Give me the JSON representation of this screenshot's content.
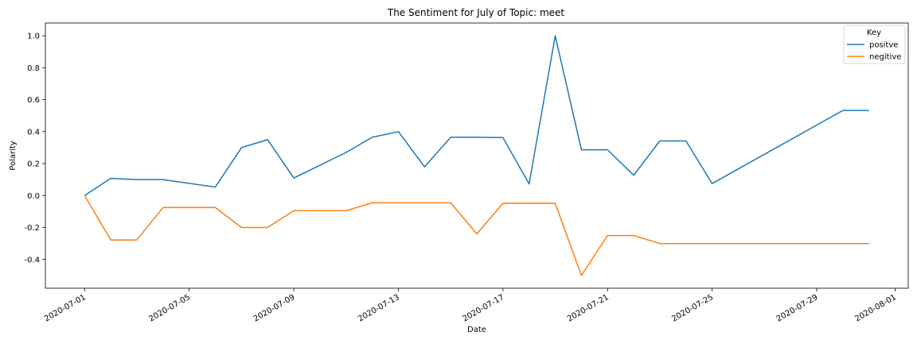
{
  "chart_data": {
    "type": "line",
    "title": "The Sentiment for July of Topic: meet",
    "xlabel": "Date",
    "ylabel": "Polarity",
    "x": [
      "2020-07-01",
      "2020-07-02",
      "2020-07-03",
      "2020-07-04",
      "2020-07-06",
      "2020-07-07",
      "2020-07-08",
      "2020-07-09",
      "2020-07-11",
      "2020-07-12",
      "2020-07-13",
      "2020-07-14",
      "2020-07-15",
      "2020-07-16",
      "2020-07-17",
      "2020-07-18",
      "2020-07-19",
      "2020-07-20",
      "2020-07-21",
      "2020-07-22",
      "2020-07-23",
      "2020-07-24",
      "2020-07-25",
      "2020-07-30",
      "2020-07-31"
    ],
    "series": [
      {
        "name": "positve",
        "color": "#1f77b4",
        "values": [
          0.0,
          0.108,
          0.1,
          0.1,
          0.053,
          0.3,
          0.35,
          0.11,
          0.27,
          0.365,
          0.4,
          0.18,
          0.365,
          0.365,
          0.363,
          0.073,
          1.0,
          0.287,
          0.287,
          0.127,
          0.342,
          0.342,
          0.075,
          0.533,
          0.533
        ]
      },
      {
        "name": "negitive",
        "color": "#ff7f0e",
        "values": [
          0.0,
          -0.278,
          -0.278,
          -0.075,
          -0.075,
          -0.2,
          -0.2,
          -0.095,
          -0.095,
          -0.045,
          -0.045,
          -0.045,
          -0.045,
          -0.24,
          -0.048,
          -0.048,
          -0.048,
          -0.5,
          -0.25,
          -0.25,
          -0.3,
          -0.3,
          -0.3,
          -0.3,
          -0.3
        ]
      }
    ],
    "x_ticks": [
      "2020-07-01",
      "2020-07-05",
      "2020-07-09",
      "2020-07-13",
      "2020-07-17",
      "2020-07-21",
      "2020-07-25",
      "2020-07-29",
      "2020-08-01"
    ],
    "y_ticks": [
      1.0,
      0.8,
      0.6,
      0.4,
      0.2,
      0.0,
      -0.2,
      -0.4
    ],
    "xlim": [
      "2020-06-29.5",
      "2020-08-01.5"
    ],
    "ylim": [
      -0.58,
      1.08
    ],
    "legend": {
      "title": "Key",
      "placement": "top-right"
    },
    "grid": false
  }
}
